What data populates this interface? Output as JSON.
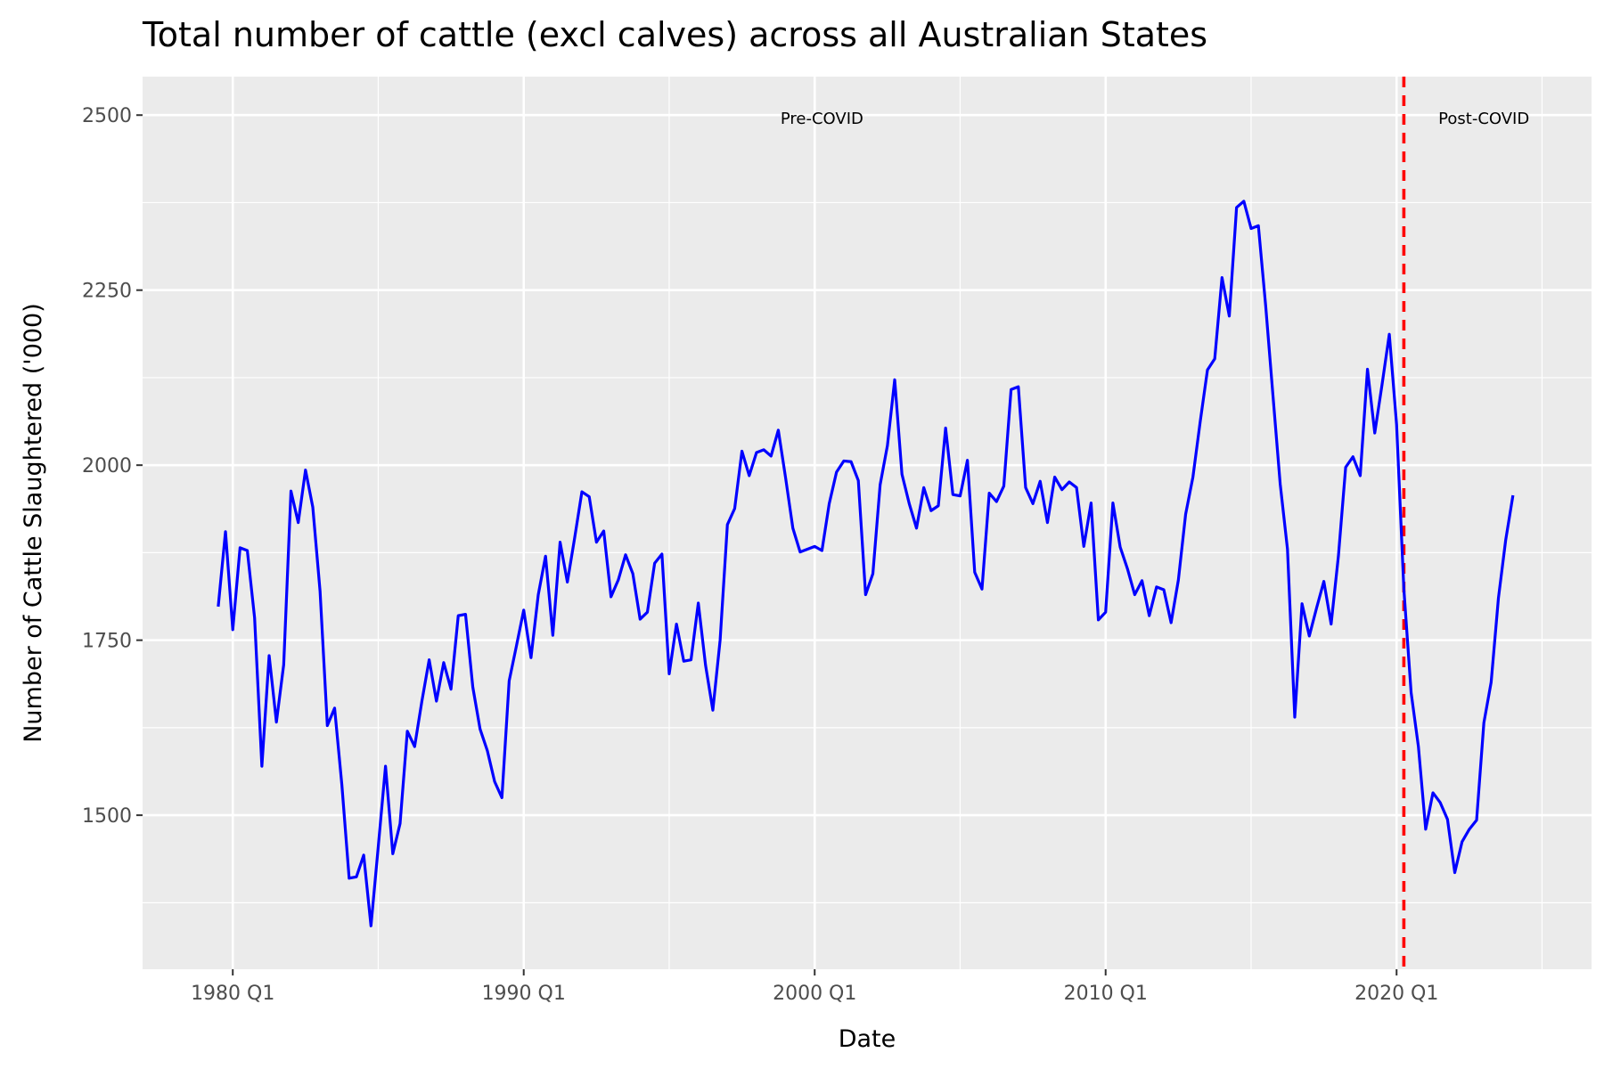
{
  "chart_data": {
    "type": "line",
    "title": "Total number of cattle (excl calves) across all Australian States",
    "xlabel": "Date",
    "ylabel": "Number of Cattle Slaughtered ('000)",
    "x_tick_labels": [
      "1980 Q1",
      "1990 Q1",
      "2000 Q1",
      "2010 Q1",
      "2020 Q1"
    ],
    "x_ticks": [
      1980.0,
      1990.0,
      2000.0,
      2010.0,
      2020.0
    ],
    "y_ticks": [
      1500,
      1750,
      2000,
      2250,
      2500
    ],
    "y_tick_labels": [
      "1500",
      "1750",
      "2000",
      "2250",
      "2500"
    ],
    "xlim": [
      1976.9,
      2026.7
    ],
    "ylim": [
      1280,
      2555
    ],
    "grid": true,
    "background_color": "#ebebeb",
    "line_color": "#0000ff",
    "vline": {
      "x": 2020.25,
      "color": "#ff0000",
      "style": "dashed"
    },
    "annotations": [
      {
        "text": "Pre-COVID",
        "x": 2000.25,
        "y": 2495
      },
      {
        "text": "Post-COVID",
        "x": 2023.0,
        "y": 2495
      }
    ],
    "series": [
      {
        "values": [
          1798,
          1905,
          1765,
          1882,
          1878,
          1782,
          1570,
          1728,
          1633,
          1715,
          1963,
          1918,
          1993,
          1940,
          1820,
          1628,
          1653,
          1543,
          1410,
          1412,
          1443,
          1342,
          1455,
          1570,
          1445,
          1488,
          1620,
          1598,
          1663,
          1722,
          1663,
          1718,
          1680,
          1785,
          1787,
          1683,
          1623,
          1592,
          1548,
          1525,
          1692,
          1742,
          1793,
          1725,
          1815,
          1870,
          1757,
          1890,
          1833,
          1896,
          1962,
          1955,
          1890,
          1906,
          1812,
          1836,
          1872,
          1845,
          1780,
          1790,
          1860,
          1873,
          1702,
          1773,
          1720,
          1722,
          1803,
          1714,
          1650,
          1750,
          1915,
          1938,
          2020,
          1985,
          2018,
          2022,
          2013,
          2050,
          1982,
          1910,
          1876,
          1880,
          1884,
          1878,
          1945,
          1990,
          2006,
          2005,
          1978,
          1815,
          1845,
          1972,
          2028,
          2122,
          1987,
          1945,
          1910,
          1968,
          1935,
          1942,
          2053,
          1958,
          1956,
          2007,
          1847,
          1823,
          1960,
          1948,
          1970,
          2108,
          2112,
          1968,
          1945,
          1977,
          1918,
          1983,
          1965,
          1976,
          1968,
          1884,
          1946,
          1779,
          1790,
          1946,
          1883,
          1852,
          1815,
          1835,
          1785,
          1826,
          1822,
          1775,
          1836,
          1930,
          1983,
          2062,
          2136,
          2152,
          2268,
          2213,
          2368,
          2377,
          2338,
          2342,
          2228,
          2100,
          1973,
          1880,
          1640,
          1802,
          1756,
          1796,
          1834,
          1773,
          1870,
          1997,
          2012,
          1985,
          2137,
          2046,
          2115,
          2187,
          2058,
          1823,
          1675,
          1598,
          1480,
          1532,
          1518,
          1494,
          1418,
          1462,
          1480,
          1493,
          1632,
          1690,
          1810,
          1893,
          1957
        ]
      }
    ]
  }
}
